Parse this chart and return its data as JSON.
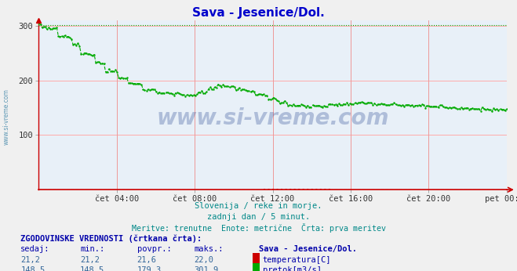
{
  "title": "Sava - Jesenice/Dol.",
  "bg_color": "#e8f0f8",
  "plot_bg_color": "#e8f0f8",
  "title_color": "#0000cc",
  "subtitle1": "Slovenija / reke in morje.",
  "subtitle2": "zadnji dan / 5 minut.",
  "subtitle3": "Meritve: trenutne  Enote: metrične  Črta: prva meritev",
  "subtitle_color": "#008888",
  "grid_color_v": "#ee9999",
  "grid_color_h": "#ffaaaa",
  "xtick_labels": [
    "čet 04:00",
    "čet 08:00",
    "čet 12:00",
    "čet 16:00",
    "čet 20:00",
    "pet 00:00"
  ],
  "ytick_labels": [
    "100",
    "200",
    "300"
  ],
  "ytick_values": [
    100,
    200,
    300
  ],
  "ylim": [
    0,
    310
  ],
  "temp_color": "#cc0000",
  "flow_color": "#00aa00",
  "axis_arrow_color": "#cc0000",
  "watermark": "www.si-vreme.com",
  "watermark_color": "#1a3a8a",
  "left_label": "www.si-vreme.com",
  "left_label_color": "#4488aa",
  "legend_title": "ZGODOVINSKE VREDNOSTI (črtkana črta):",
  "legend_headers": [
    "sedaj:",
    "min.:",
    "povpr.:",
    "maks.:",
    "Sava - Jesenice/Dol."
  ],
  "temp_values_str": [
    "21,2",
    "21,2",
    "21,6",
    "22,0"
  ],
  "flow_values_str": [
    "148,5",
    "148,5",
    "179,3",
    "301,9"
  ],
  "temp_label": "temperatura[C]",
  "flow_label": "pretok[m3/s]",
  "text_color_blue": "#0000aa",
  "text_color_val": "#336699",
  "n_points": 288
}
